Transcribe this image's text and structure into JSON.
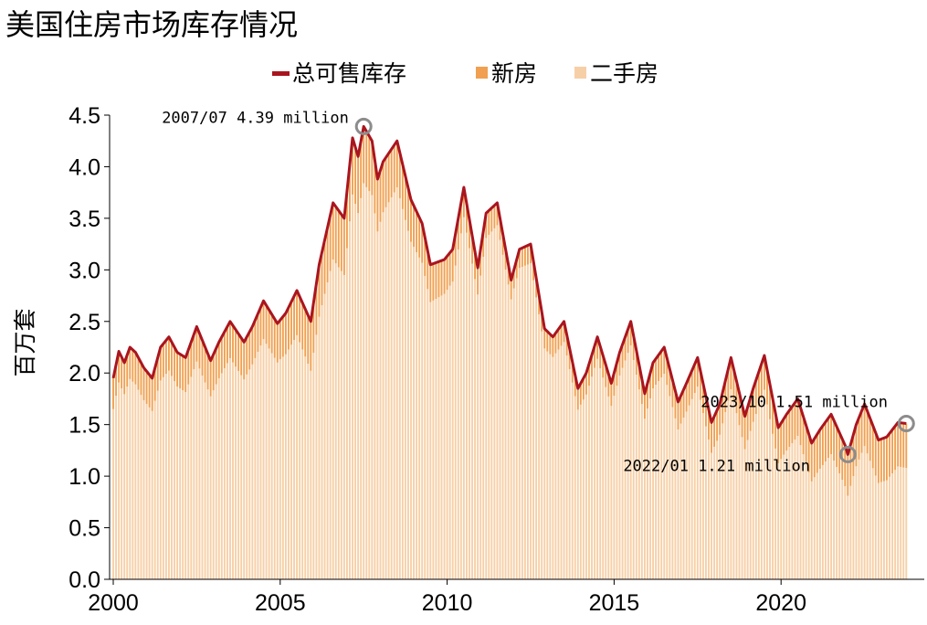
{
  "title": "美国住房市场库存情况",
  "colors": {
    "total": "#A9151F",
    "new": "#F0A050",
    "existing": "#F7CFA6",
    "annotation_circle": "#8C8C8C"
  },
  "chart_data": {
    "type": "bar",
    "stacked": true,
    "title": "美国住房市场库存情况",
    "xlabel": "",
    "ylabel": "百万套",
    "ylim": [
      0,
      4.5
    ],
    "y_ticks": [
      "0.0",
      "0.5",
      "1.0",
      "1.5",
      "2.0",
      "2.5",
      "3.0",
      "3.5",
      "4.0",
      "4.5"
    ],
    "x_ticks": [
      "2000",
      "2005",
      "2010",
      "2015",
      "2020"
    ],
    "x_range": [
      "2000-01",
      "2023-10"
    ],
    "legend_position": "top",
    "grid": false,
    "legend": [
      "总可售库存",
      "新房",
      "二手房"
    ],
    "series": [
      {
        "name": "总可售库存",
        "type": "line",
        "color": "#A9151F",
        "points": [
          [
            "2000-01",
            1.95
          ],
          [
            "2000-03",
            2.21
          ],
          [
            "2000-05",
            2.1
          ],
          [
            "2000-07",
            2.25
          ],
          [
            "2000-09",
            2.2
          ],
          [
            "2000-12",
            2.05
          ],
          [
            "2001-03",
            1.95
          ],
          [
            "2001-06",
            2.25
          ],
          [
            "2001-09",
            2.35
          ],
          [
            "2001-12",
            2.2
          ],
          [
            "2002-03",
            2.15
          ],
          [
            "2002-07",
            2.45
          ],
          [
            "2002-12",
            2.12
          ],
          [
            "2003-03",
            2.3
          ],
          [
            "2003-07",
            2.5
          ],
          [
            "2003-12",
            2.3
          ],
          [
            "2004-03",
            2.45
          ],
          [
            "2004-07",
            2.7
          ],
          [
            "2004-12",
            2.48
          ],
          [
            "2005-03",
            2.58
          ],
          [
            "2005-07",
            2.8
          ],
          [
            "2005-12",
            2.5
          ],
          [
            "2006-03",
            3.05
          ],
          [
            "2006-08",
            3.65
          ],
          [
            "2006-12",
            3.5
          ],
          [
            "2007-03",
            4.28
          ],
          [
            "2007-05",
            4.1
          ],
          [
            "2007-07",
            4.39
          ],
          [
            "2007-10",
            4.25
          ],
          [
            "2007-12",
            3.88
          ],
          [
            "2008-02",
            4.05
          ],
          [
            "2008-07",
            4.25
          ],
          [
            "2008-12",
            3.68
          ],
          [
            "2009-04",
            3.45
          ],
          [
            "2009-07",
            3.05
          ],
          [
            "2009-12",
            3.1
          ],
          [
            "2010-03",
            3.2
          ],
          [
            "2010-07",
            3.8
          ],
          [
            "2010-12",
            3.02
          ],
          [
            "2011-03",
            3.55
          ],
          [
            "2011-07",
            3.65
          ],
          [
            "2011-12",
            2.9
          ],
          [
            "2012-03",
            3.2
          ],
          [
            "2012-07",
            3.25
          ],
          [
            "2012-12",
            2.43
          ],
          [
            "2013-03",
            2.35
          ],
          [
            "2013-07",
            2.5
          ],
          [
            "2013-12",
            1.85
          ],
          [
            "2014-03",
            2.0
          ],
          [
            "2014-07",
            2.35
          ],
          [
            "2014-12",
            1.9
          ],
          [
            "2015-03",
            2.2
          ],
          [
            "2015-07",
            2.5
          ],
          [
            "2015-12",
            1.8
          ],
          [
            "2016-03",
            2.1
          ],
          [
            "2016-07",
            2.25
          ],
          [
            "2016-12",
            1.72
          ],
          [
            "2017-03",
            1.9
          ],
          [
            "2017-07",
            2.15
          ],
          [
            "2017-12",
            1.52
          ],
          [
            "2018-03",
            1.7
          ],
          [
            "2018-07",
            2.15
          ],
          [
            "2018-12",
            1.58
          ],
          [
            "2019-03",
            1.85
          ],
          [
            "2019-07",
            2.17
          ],
          [
            "2019-12",
            1.47
          ],
          [
            "2020-03",
            1.6
          ],
          [
            "2020-07",
            1.75
          ],
          [
            "2020-12",
            1.32
          ],
          [
            "2021-03",
            1.45
          ],
          [
            "2021-07",
            1.6
          ],
          [
            "2021-12",
            1.3
          ],
          [
            "2022-01",
            1.21
          ],
          [
            "2022-04",
            1.5
          ],
          [
            "2022-07",
            1.7
          ],
          [
            "2022-12",
            1.35
          ],
          [
            "2023-03",
            1.38
          ],
          [
            "2023-07",
            1.52
          ],
          [
            "2023-10",
            1.51
          ]
        ]
      },
      {
        "name": "新房",
        "type": "bar",
        "color": "#F0A050",
        "points": [
          [
            "2000-01",
            0.3
          ],
          [
            "2005-01",
            0.38
          ],
          [
            "2006-08",
            0.55
          ],
          [
            "2007-07",
            0.55
          ],
          [
            "2009-01",
            0.4
          ],
          [
            "2012-01",
            0.18
          ],
          [
            "2015-01",
            0.22
          ],
          [
            "2019-01",
            0.32
          ],
          [
            "2022-01",
            0.4
          ],
          [
            "2023-10",
            0.43
          ]
        ]
      },
      {
        "name": "二手房",
        "type": "bar",
        "color": "#F7CFA6",
        "points": []
      }
    ],
    "annotations": [
      {
        "x": "2007-07",
        "y": 4.39,
        "text": "2007/07 4.39 million"
      },
      {
        "x": "2022-01",
        "y": 1.21,
        "text": "2022/01 1.21 million"
      },
      {
        "x": "2023-10",
        "y": 1.51,
        "text": "2023/10 1.51 million"
      }
    ]
  }
}
